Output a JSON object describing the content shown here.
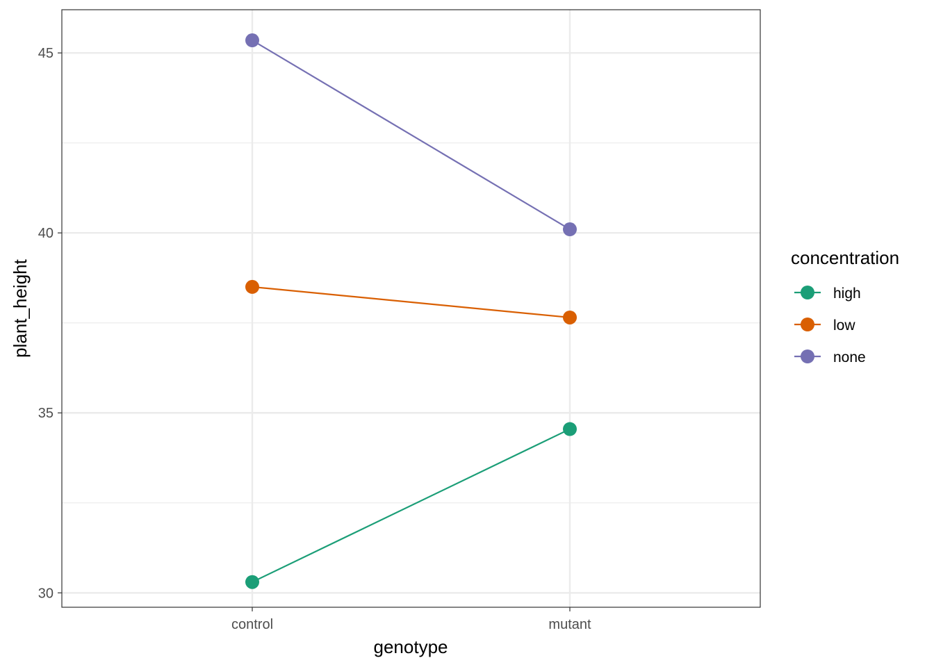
{
  "chart_data": {
    "type": "line",
    "categories": [
      "control",
      "mutant"
    ],
    "xlabel": "genotype",
    "ylabel": "plant_height",
    "ylim": [
      29.6,
      46.2
    ],
    "yticks": [
      "30",
      "35",
      "40",
      "45"
    ],
    "grid": true,
    "legend": {
      "title": "concentration",
      "position": "right"
    },
    "series": [
      {
        "name": "high",
        "color": "#1b9e77",
        "values": [
          30.3,
          34.55
        ]
      },
      {
        "name": "low",
        "color": "#d95f02",
        "values": [
          38.5,
          37.65
        ]
      },
      {
        "name": "none",
        "color": "#7570b3",
        "values": [
          45.35,
          40.1
        ]
      }
    ]
  }
}
